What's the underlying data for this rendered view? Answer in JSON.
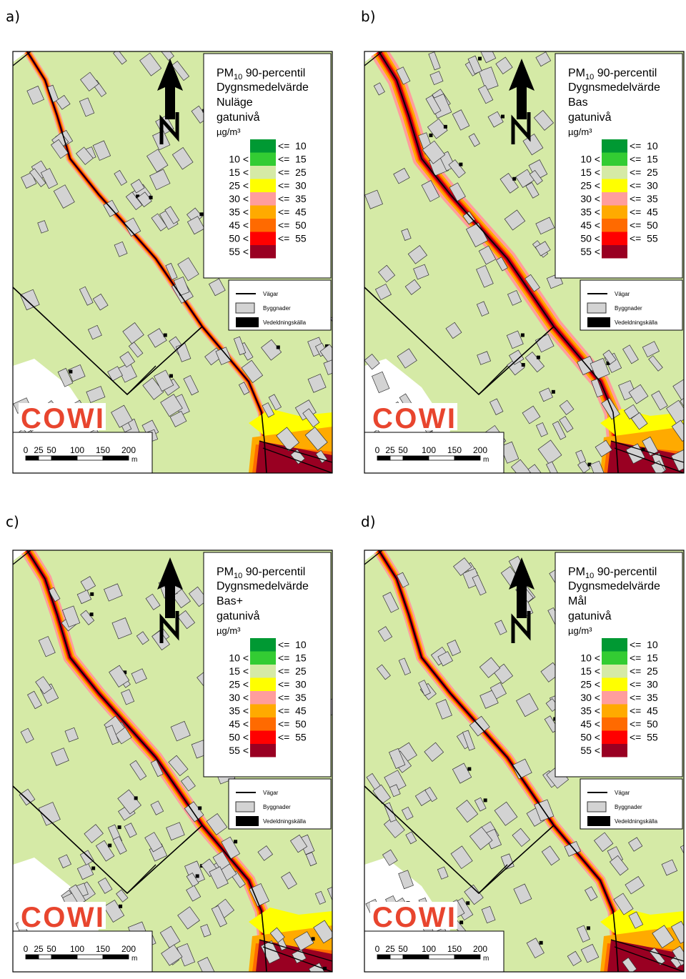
{
  "panels": [
    {
      "label": "a)",
      "scenario": "Nuläge"
    },
    {
      "label": "b)",
      "scenario": "Bas"
    },
    {
      "label": "c)",
      "scenario": "Bas+"
    },
    {
      "label": "d)",
      "scenario": "Mål"
    }
  ],
  "legend": {
    "title": [
      "PM",
      "10",
      " 90-percentil"
    ],
    "line2": "Dygnsmedelvärde",
    "line4": "gatunivå",
    "unit": "µg/m³",
    "classes": [
      {
        "upper": "<=  10",
        "color": "#009933"
      },
      {
        "lower": "10 <",
        "upper": "<=  15",
        "color": "#33cc33"
      },
      {
        "lower": "15 <",
        "upper": "<=  25",
        "color": "#d5eaa6"
      },
      {
        "lower": "25 <",
        "upper": "<=  30",
        "color": "#ffff00"
      },
      {
        "lower": "30 <",
        "upper": "<=  35",
        "color": "#ff9d9d"
      },
      {
        "lower": "35 <",
        "upper": "<=  45",
        "color": "#ffaa00"
      },
      {
        "lower": "45 <",
        "upper": "<=  50",
        "color": "#ff6a00"
      },
      {
        "lower": "50 <",
        "upper": "<=  55",
        "color": "#ff0000"
      },
      {
        "lower": "55 <",
        "color": "#990022"
      }
    ]
  },
  "features": [
    "Vägar",
    "Byggnader",
    "Vedeldningskälla"
  ],
  "scale": {
    "ticks": [
      0,
      25,
      50,
      100,
      150,
      200
    ],
    "unit": "m"
  },
  "logo": "COWI"
}
